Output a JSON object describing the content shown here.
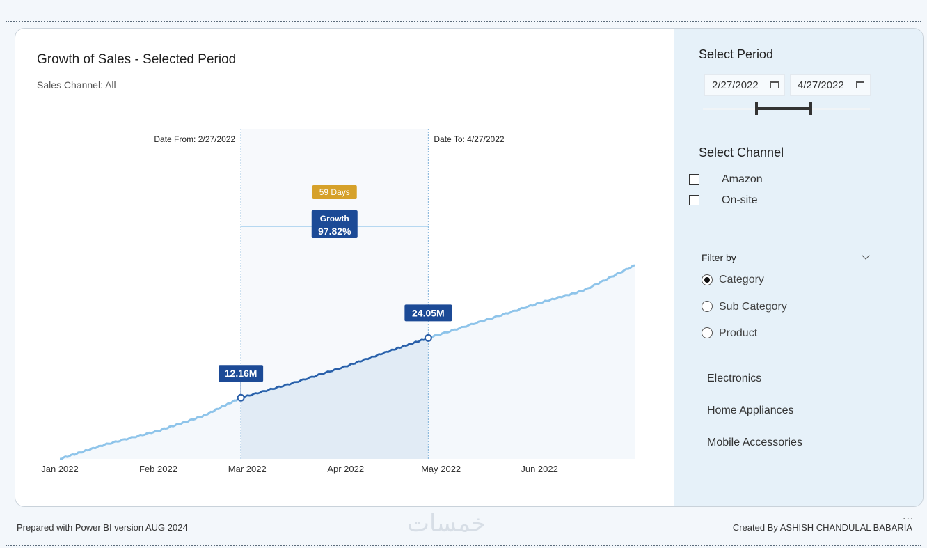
{
  "chart_title": "Growth of Sales - Selected Period",
  "chart_subtitle": "Sales Channel: All",
  "annotations": {
    "date_from": "Date From: 2/27/2022",
    "date_to": "Date To: 4/27/2022",
    "days_badge": "59 Days",
    "growth_label": "Growth",
    "growth_value": "97.82%",
    "start_value": "12.16M",
    "end_value": "24.05M"
  },
  "panel": {
    "select_period_title": "Select Period",
    "date_start": "2/27/2022",
    "date_end": "4/27/2022",
    "select_channel_title": "Select Channel",
    "channels": [
      "Amazon",
      "On-site"
    ],
    "filter_by_title": "Filter by",
    "filter_options": [
      "Category",
      "Sub Category",
      "Product"
    ],
    "filter_selected": "Category",
    "items": [
      "Electronics",
      "Home Appliances",
      "Mobile Accessories"
    ]
  },
  "footer": {
    "left": "Prepared with Power BI version AUG 2024",
    "right": "Created By ASHISH CHANDULAL BABARIA",
    "more": "..."
  },
  "watermark": "خمسات",
  "colors": {
    "line": "#8ec4ea",
    "selected_line": "#2a5ea8",
    "label_bg": "#1c4a96",
    "badge_bg": "#d6a12a",
    "panel_bg": "#e6f1f9"
  },
  "chart_data": {
    "type": "line",
    "title": "Growth of Sales - Selected Period",
    "subtitle": "Sales Channel: All",
    "x_tick_labels": [
      "Jan 2022",
      "Feb 2022",
      "Mar 2022",
      "Apr 2022",
      "May 2022",
      "Jun 2022"
    ],
    "series": [
      {
        "x": [
          "2022-01-01",
          "2022-01-15",
          "2022-02-01",
          "2022-02-15",
          "2022-02-27",
          "2022-03-15",
          "2022-04-01",
          "2022-04-15",
          "2022-04-27",
          "2022-05-15",
          "2022-06-01",
          "2022-06-15",
          "2022-07-01"
        ],
        "values": [
          0.0,
          2.8,
          5.6,
          8.5,
          12.16,
          15.0,
          18.4,
          21.5,
          24.05,
          27.6,
          31.0,
          33.5,
          38.5
        ]
      }
    ],
    "selection": {
      "from": "2022-02-27",
      "to": "2022-04-27",
      "days": 59,
      "start_value": 12.16,
      "end_value": 24.05,
      "growth_percent": 97.82
    },
    "units": "M"
  }
}
